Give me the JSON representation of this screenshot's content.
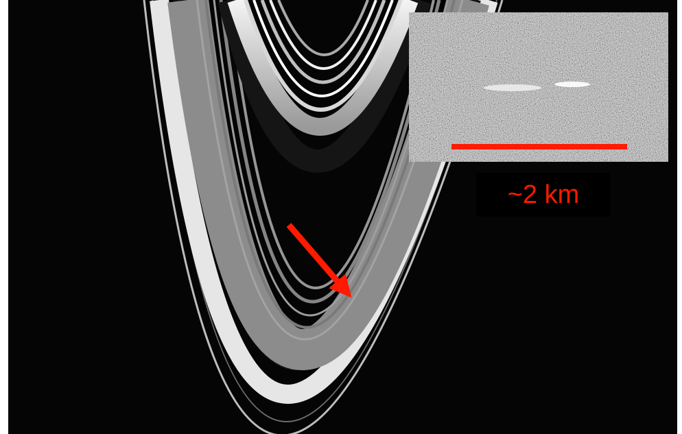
{
  "image": {
    "subject": "planetary-ring-system",
    "colors": {
      "background": "#050505",
      "annotation": "#ff1a00",
      "label_background": "#000000"
    }
  },
  "inset": {
    "scale_bar_label": "~2 km"
  }
}
